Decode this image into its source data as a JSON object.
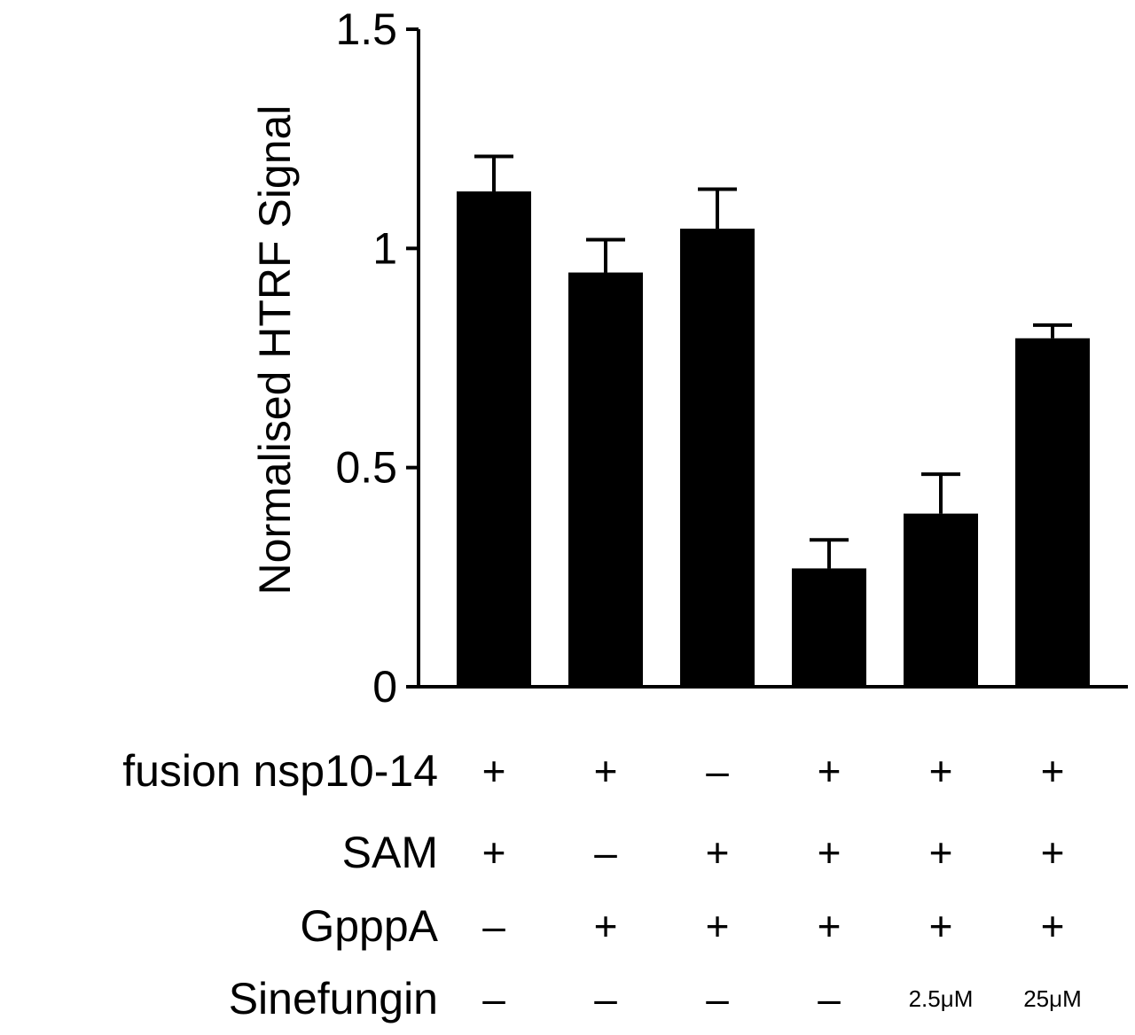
{
  "chart_data": {
    "type": "bar",
    "title": "",
    "xlabel": "",
    "ylabel": "Normalised HTRF Signal",
    "ylim": [
      0,
      1.5
    ],
    "yticks": [
      0,
      0.5,
      1,
      1.5
    ],
    "ytick_labels": [
      "0",
      "0.5",
      "1",
      "1.5"
    ],
    "grid": false,
    "legend": "none",
    "bar_color": "#000000",
    "values": [
      1.13,
      0.945,
      1.045,
      0.27,
      0.395,
      0.795
    ],
    "errors": [
      0.08,
      0.075,
      0.09,
      0.065,
      0.09,
      0.03
    ],
    "conditions": [
      {
        "label": "fusion nsp10-14",
        "values": [
          "+",
          "+",
          "–",
          "+",
          "+",
          "+"
        ]
      },
      {
        "label": "SAM",
        "values": [
          "+",
          "–",
          "+",
          "+",
          "+",
          "+"
        ]
      },
      {
        "label": "GpppA",
        "values": [
          "–",
          "+",
          "+",
          "+",
          "+",
          "+"
        ]
      },
      {
        "label": "Sinefungin",
        "values": [
          "–",
          "–",
          "–",
          "–",
          "2.5μM",
          "25μM"
        ]
      }
    ]
  }
}
